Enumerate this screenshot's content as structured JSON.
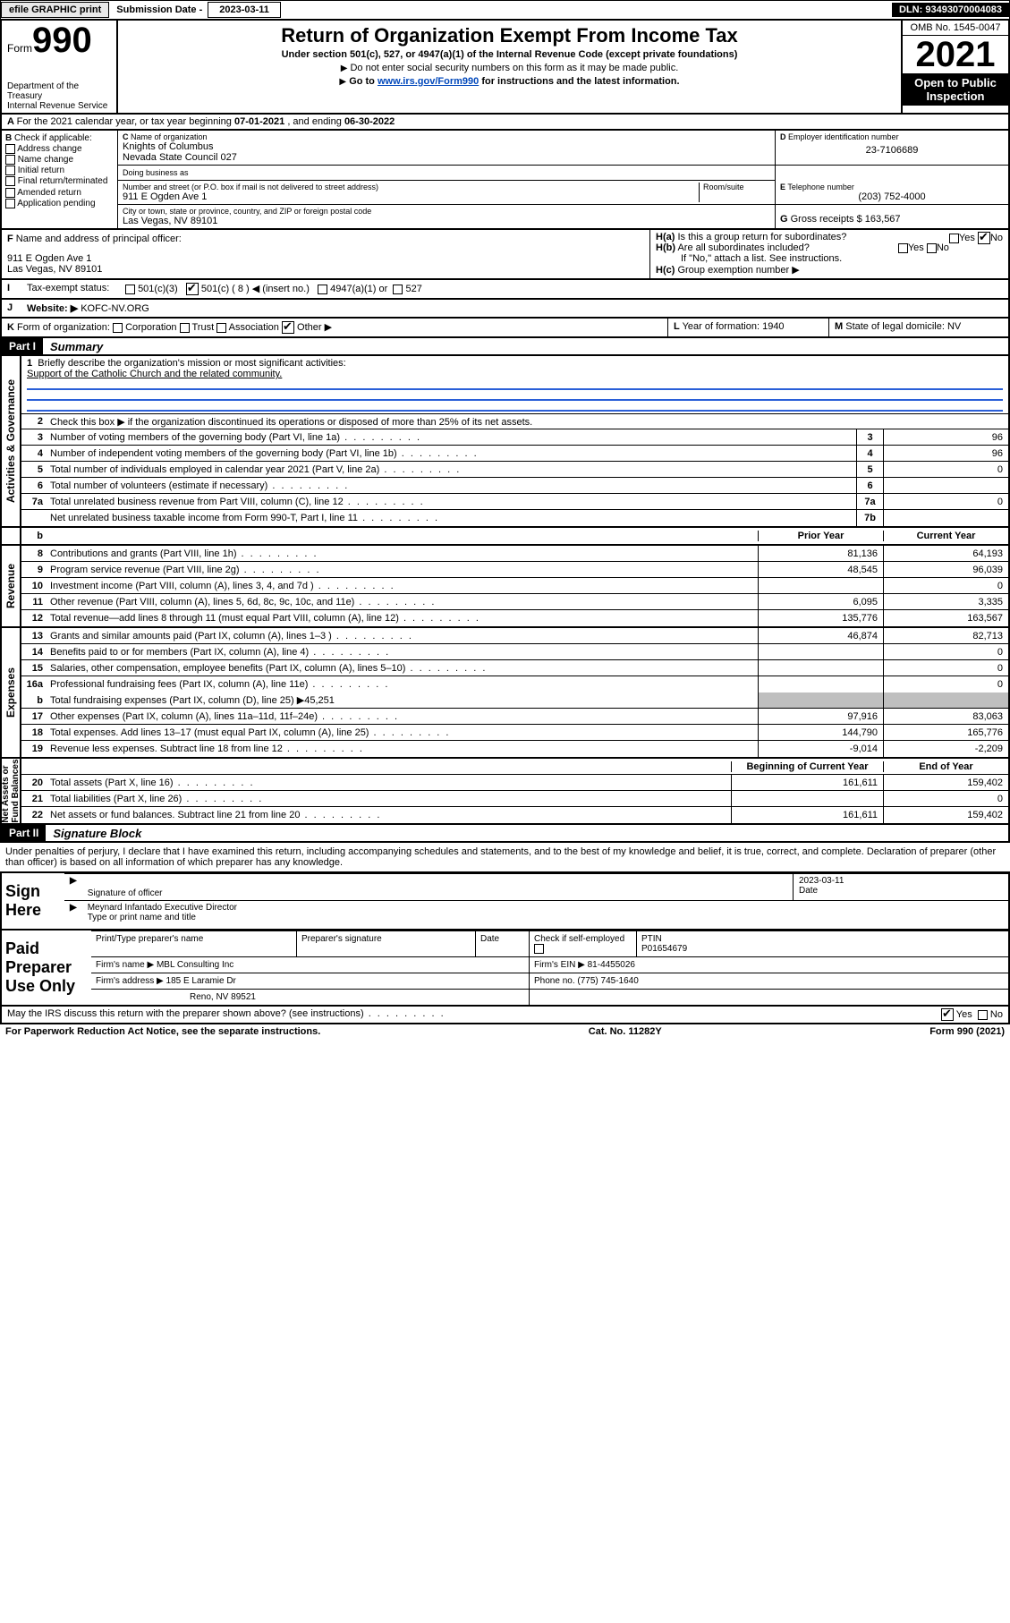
{
  "topbar": {
    "efile": "efile GRAPHIC print",
    "subdate_lbl": "Submission Date - ",
    "subdate": "2023-03-11",
    "dln": "DLN: 93493070004083"
  },
  "hdr": {
    "form": "Form",
    "n990": "990",
    "dept": "Department of the Treasury",
    "irs": "Internal Revenue Service",
    "title": "Return of Organization Exempt From Income Tax",
    "sub": "Under section 501(c), 527, or 4947(a)(1) of the Internal Revenue Code (except private foundations)",
    "note1": "Do not enter social security numbers on this form as it may be made public.",
    "note2_pre": "Go to ",
    "note2_link": "www.irs.gov/Form990",
    "note2_post": " for instructions and the latest information.",
    "omb": "OMB No. 1545-0047",
    "year": "2021",
    "inspect": "Open to Public Inspection"
  },
  "A": {
    "text": "For the 2021 calendar year, or tax year beginning ",
    "begin": "07-01-2021",
    "mid": " , and ending ",
    "end": "06-30-2022"
  },
  "B": {
    "hdr": "Check if applicable:",
    "items": [
      "Address change",
      "Name change",
      "Initial return",
      "Final return/terminated",
      "Amended return",
      "Application pending"
    ]
  },
  "C": {
    "namelbl": "Name of organization",
    "name1": "Knights of Columbus",
    "name2": "Nevada State Council 027",
    "dba": "Doing business as",
    "addrlbl": "Number and street (or P.O. box if mail is not delivered to street address)",
    "room": "Room/suite",
    "addr": "911 E Ogden Ave 1",
    "citylbl": "City or town, state or province, country, and ZIP or foreign postal code",
    "city": "Las Vegas, NV  89101"
  },
  "D": {
    "lbl": "Employer identification number",
    "val": "23-7106689"
  },
  "E": {
    "lbl": "Telephone number",
    "val": "(203) 752-4000"
  },
  "G": {
    "lbl": "Gross receipts $",
    "val": "163,567"
  },
  "F": {
    "lbl": "Name and address of principal officer:",
    "l1": "911 E Ogden Ave 1",
    "l2": "Las Vegas, NV  89101"
  },
  "H": {
    "a": "Is this a group return for subordinates?",
    "b": "Are all subordinates included?",
    "b2": "If \"No,\" attach a list. See instructions.",
    "c": "Group exemption number ▶"
  },
  "I": {
    "lbl": "Tax-exempt status:",
    "opts": [
      "501(c)(3)",
      "501(c) ( 8 ) ◀ (insert no.)",
      "4947(a)(1) or",
      "527"
    ]
  },
  "J": {
    "lbl": "Website: ▶",
    "val": "KOFC-NV.ORG"
  },
  "K": {
    "lbl": "Form of organization:",
    "opts": [
      "Corporation",
      "Trust",
      "Association",
      "Other ▶"
    ]
  },
  "L": {
    "lbl": "Year of formation:",
    "val": "1940"
  },
  "M": {
    "lbl": "State of legal domicile:",
    "val": "NV"
  },
  "part1": {
    "bar": "Part I",
    "title": "Summary"
  },
  "mission": {
    "num": "1",
    "lbl": "Briefly describe the organization's mission or most significant activities:",
    "text": "Support of the Catholic Church and the related community."
  },
  "gov": {
    "l2": "Check this box ▶      if the organization discontinued its operations or disposed of more than 25% of its net assets.",
    "rows": [
      {
        "n": "3",
        "d": "Number of voting members of the governing body (Part VI, line 1a)",
        "box": "3",
        "v": "96"
      },
      {
        "n": "4",
        "d": "Number of independent voting members of the governing body (Part VI, line 1b)",
        "box": "4",
        "v": "96"
      },
      {
        "n": "5",
        "d": "Total number of individuals employed in calendar year 2021 (Part V, line 2a)",
        "box": "5",
        "v": "0"
      },
      {
        "n": "6",
        "d": "Total number of volunteers (estimate if necessary)",
        "box": "6",
        "v": ""
      },
      {
        "n": "7a",
        "d": "Total unrelated business revenue from Part VIII, column (C), line 12",
        "box": "7a",
        "v": "0"
      },
      {
        "n": "",
        "d": "Net unrelated business taxable income from Form 990-T, Part I, line 11",
        "box": "7b",
        "v": ""
      }
    ]
  },
  "colhdr": {
    "b": "b",
    "prior": "Prior Year",
    "cur": "Current Year"
  },
  "rev": [
    {
      "n": "8",
      "d": "Contributions and grants (Part VIII, line 1h)",
      "p": "81,136",
      "c": "64,193"
    },
    {
      "n": "9",
      "d": "Program service revenue (Part VIII, line 2g)",
      "p": "48,545",
      "c": "96,039"
    },
    {
      "n": "10",
      "d": "Investment income (Part VIII, column (A), lines 3, 4, and 7d )",
      "p": "",
      "c": "0"
    },
    {
      "n": "11",
      "d": "Other revenue (Part VIII, column (A), lines 5, 6d, 8c, 9c, 10c, and 11e)",
      "p": "6,095",
      "c": "3,335"
    },
    {
      "n": "12",
      "d": "Total revenue—add lines 8 through 11 (must equal Part VIII, column (A), line 12)",
      "p": "135,776",
      "c": "163,567"
    }
  ],
  "exp": [
    {
      "n": "13",
      "d": "Grants and similar amounts paid (Part IX, column (A), lines 1–3 )",
      "p": "46,874",
      "c": "82,713"
    },
    {
      "n": "14",
      "d": "Benefits paid to or for members (Part IX, column (A), line 4)",
      "p": "",
      "c": "0"
    },
    {
      "n": "15",
      "d": "Salaries, other compensation, employee benefits (Part IX, column (A), lines 5–10)",
      "p": "",
      "c": "0"
    },
    {
      "n": "16a",
      "d": "Professional fundraising fees (Part IX, column (A), line 11e)",
      "p": "",
      "c": "0"
    }
  ],
  "exp16b": {
    "n": "b",
    "d": "Total fundraising expenses (Part IX, column (D), line 25) ▶",
    "v": "45,251"
  },
  "exp2": [
    {
      "n": "17",
      "d": "Other expenses (Part IX, column (A), lines 11a–11d, 11f–24e)",
      "p": "97,916",
      "c": "83,063"
    },
    {
      "n": "18",
      "d": "Total expenses. Add lines 13–17 (must equal Part IX, column (A), line 25)",
      "p": "144,790",
      "c": "165,776"
    },
    {
      "n": "19",
      "d": "Revenue less expenses. Subtract line 18 from line 12",
      "p": "-9,014",
      "c": "-2,209"
    }
  ],
  "nethdr": {
    "b": "Beginning of Current Year",
    "e": "End of Year"
  },
  "net": [
    {
      "n": "20",
      "d": "Total assets (Part X, line 16)",
      "p": "161,611",
      "c": "159,402"
    },
    {
      "n": "21",
      "d": "Total liabilities (Part X, line 26)",
      "p": "",
      "c": "0"
    },
    {
      "n": "22",
      "d": "Net assets or fund balances. Subtract line 21 from line 20",
      "p": "161,611",
      "c": "159,402"
    }
  ],
  "part2": {
    "bar": "Part II",
    "title": "Signature Block"
  },
  "sigp": "Under penalties of perjury, I declare that I have examined this return, including accompanying schedules and statements, and to the best of my knowledge and belief, it is true, correct, and complete. Declaration of preparer (other than officer) is based on all information of which preparer has any knowledge.",
  "sign": {
    "lbl": "Sign Here",
    "sig_of": "Signature of officer",
    "date": "2023-03-11",
    "datelbl": "Date",
    "name": "Meynard Infantado  Executive Director",
    "name_lbl": "Type or print name and title"
  },
  "prep": {
    "lbl": "Paid Preparer Use Only",
    "h": [
      "Print/Type preparer's name",
      "Preparer's signature",
      "Date"
    ],
    "chk": "Check       if self-employed",
    "ptin_lbl": "PTIN",
    "ptin": "P01654679",
    "firm_lbl": "Firm's name    ▶",
    "firm": "MBL Consulting Inc",
    "ein_lbl": "Firm's EIN ▶",
    "ein": "81-4455026",
    "addr_lbl": "Firm's address ▶",
    "addr1": "185 E Laramie Dr",
    "addr2": "Reno, NV  89521",
    "ph_lbl": "Phone no.",
    "ph": "(775) 745-1640"
  },
  "foot": {
    "q": "May the IRS discuss this return with the preparer shown above? (see instructions)",
    "pra": "For Paperwork Reduction Act Notice, see the separate instructions.",
    "cat": "Cat. No. 11282Y",
    "form": "Form 990 (2021)"
  }
}
